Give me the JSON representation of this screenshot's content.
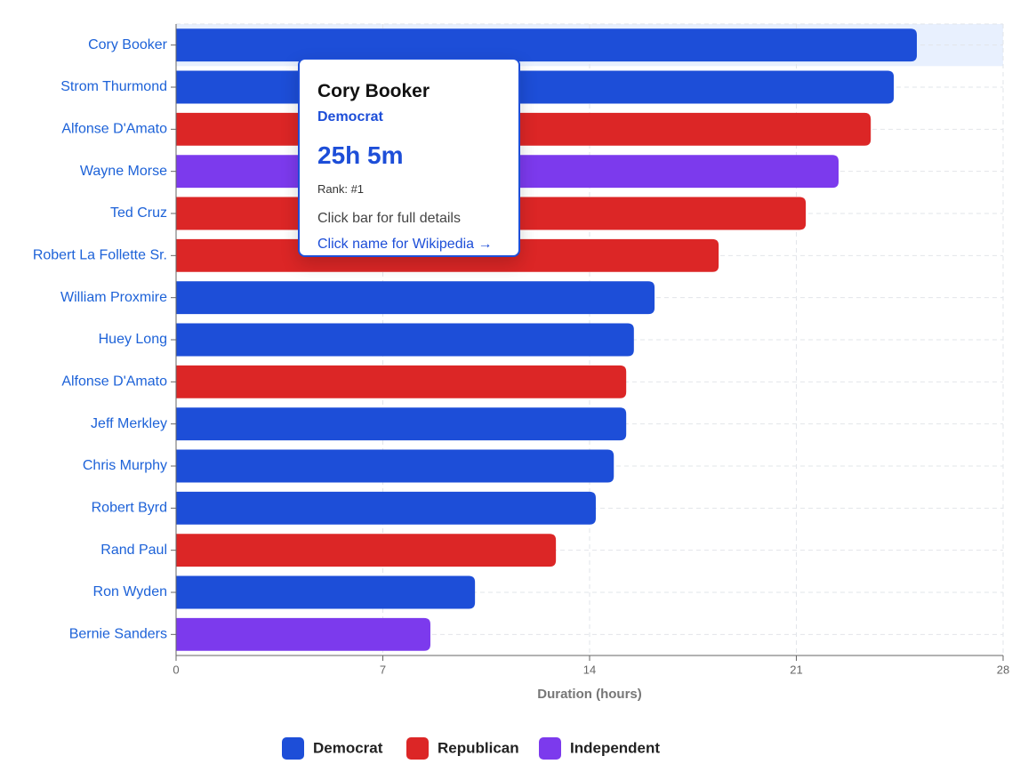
{
  "chart_data": {
    "type": "bar",
    "orientation": "horizontal",
    "x_label": "Duration (hours)",
    "categories": [
      "Cory Booker",
      "Strom Thurmond",
      "Alfonse D'Amato",
      "Wayne Morse",
      "Ted Cruz",
      "Robert La Follette Sr.",
      "William Proxmire",
      "Huey Long",
      "Alfonse D'Amato",
      "Jeff Merkley",
      "Chris Murphy",
      "Robert Byrd",
      "Rand Paul",
      "Ron Wyden",
      "Bernie Sanders"
    ],
    "series": [
      {
        "name": "Democrat",
        "color": "#1d4ed8",
        "values": [
          25.08,
          24.3,
          null,
          null,
          null,
          null,
          16.2,
          15.5,
          null,
          15.24,
          14.82,
          14.21,
          null,
          10.12,
          null
        ]
      },
      {
        "name": "Republican",
        "color": "#dc2626",
        "values": [
          null,
          null,
          23.52,
          null,
          21.32,
          18.37,
          null,
          null,
          15.24,
          null,
          null,
          null,
          12.86,
          null,
          null
        ]
      },
      {
        "name": "Independent",
        "color": "#7c3aed",
        "values": [
          null,
          null,
          null,
          22.43,
          null,
          null,
          null,
          null,
          null,
          null,
          null,
          null,
          null,
          null,
          8.61
        ]
      }
    ],
    "xlim": [
      0,
      28
    ],
    "xticks": [
      0,
      7,
      14,
      21,
      28
    ],
    "grid": true,
    "tooltip": {
      "duration": "25h 5m",
      "rank": "Rank: #1",
      "hint1": "Click bar for full details",
      "hint2": "Click name for Wikipedia →"
    }
  }
}
